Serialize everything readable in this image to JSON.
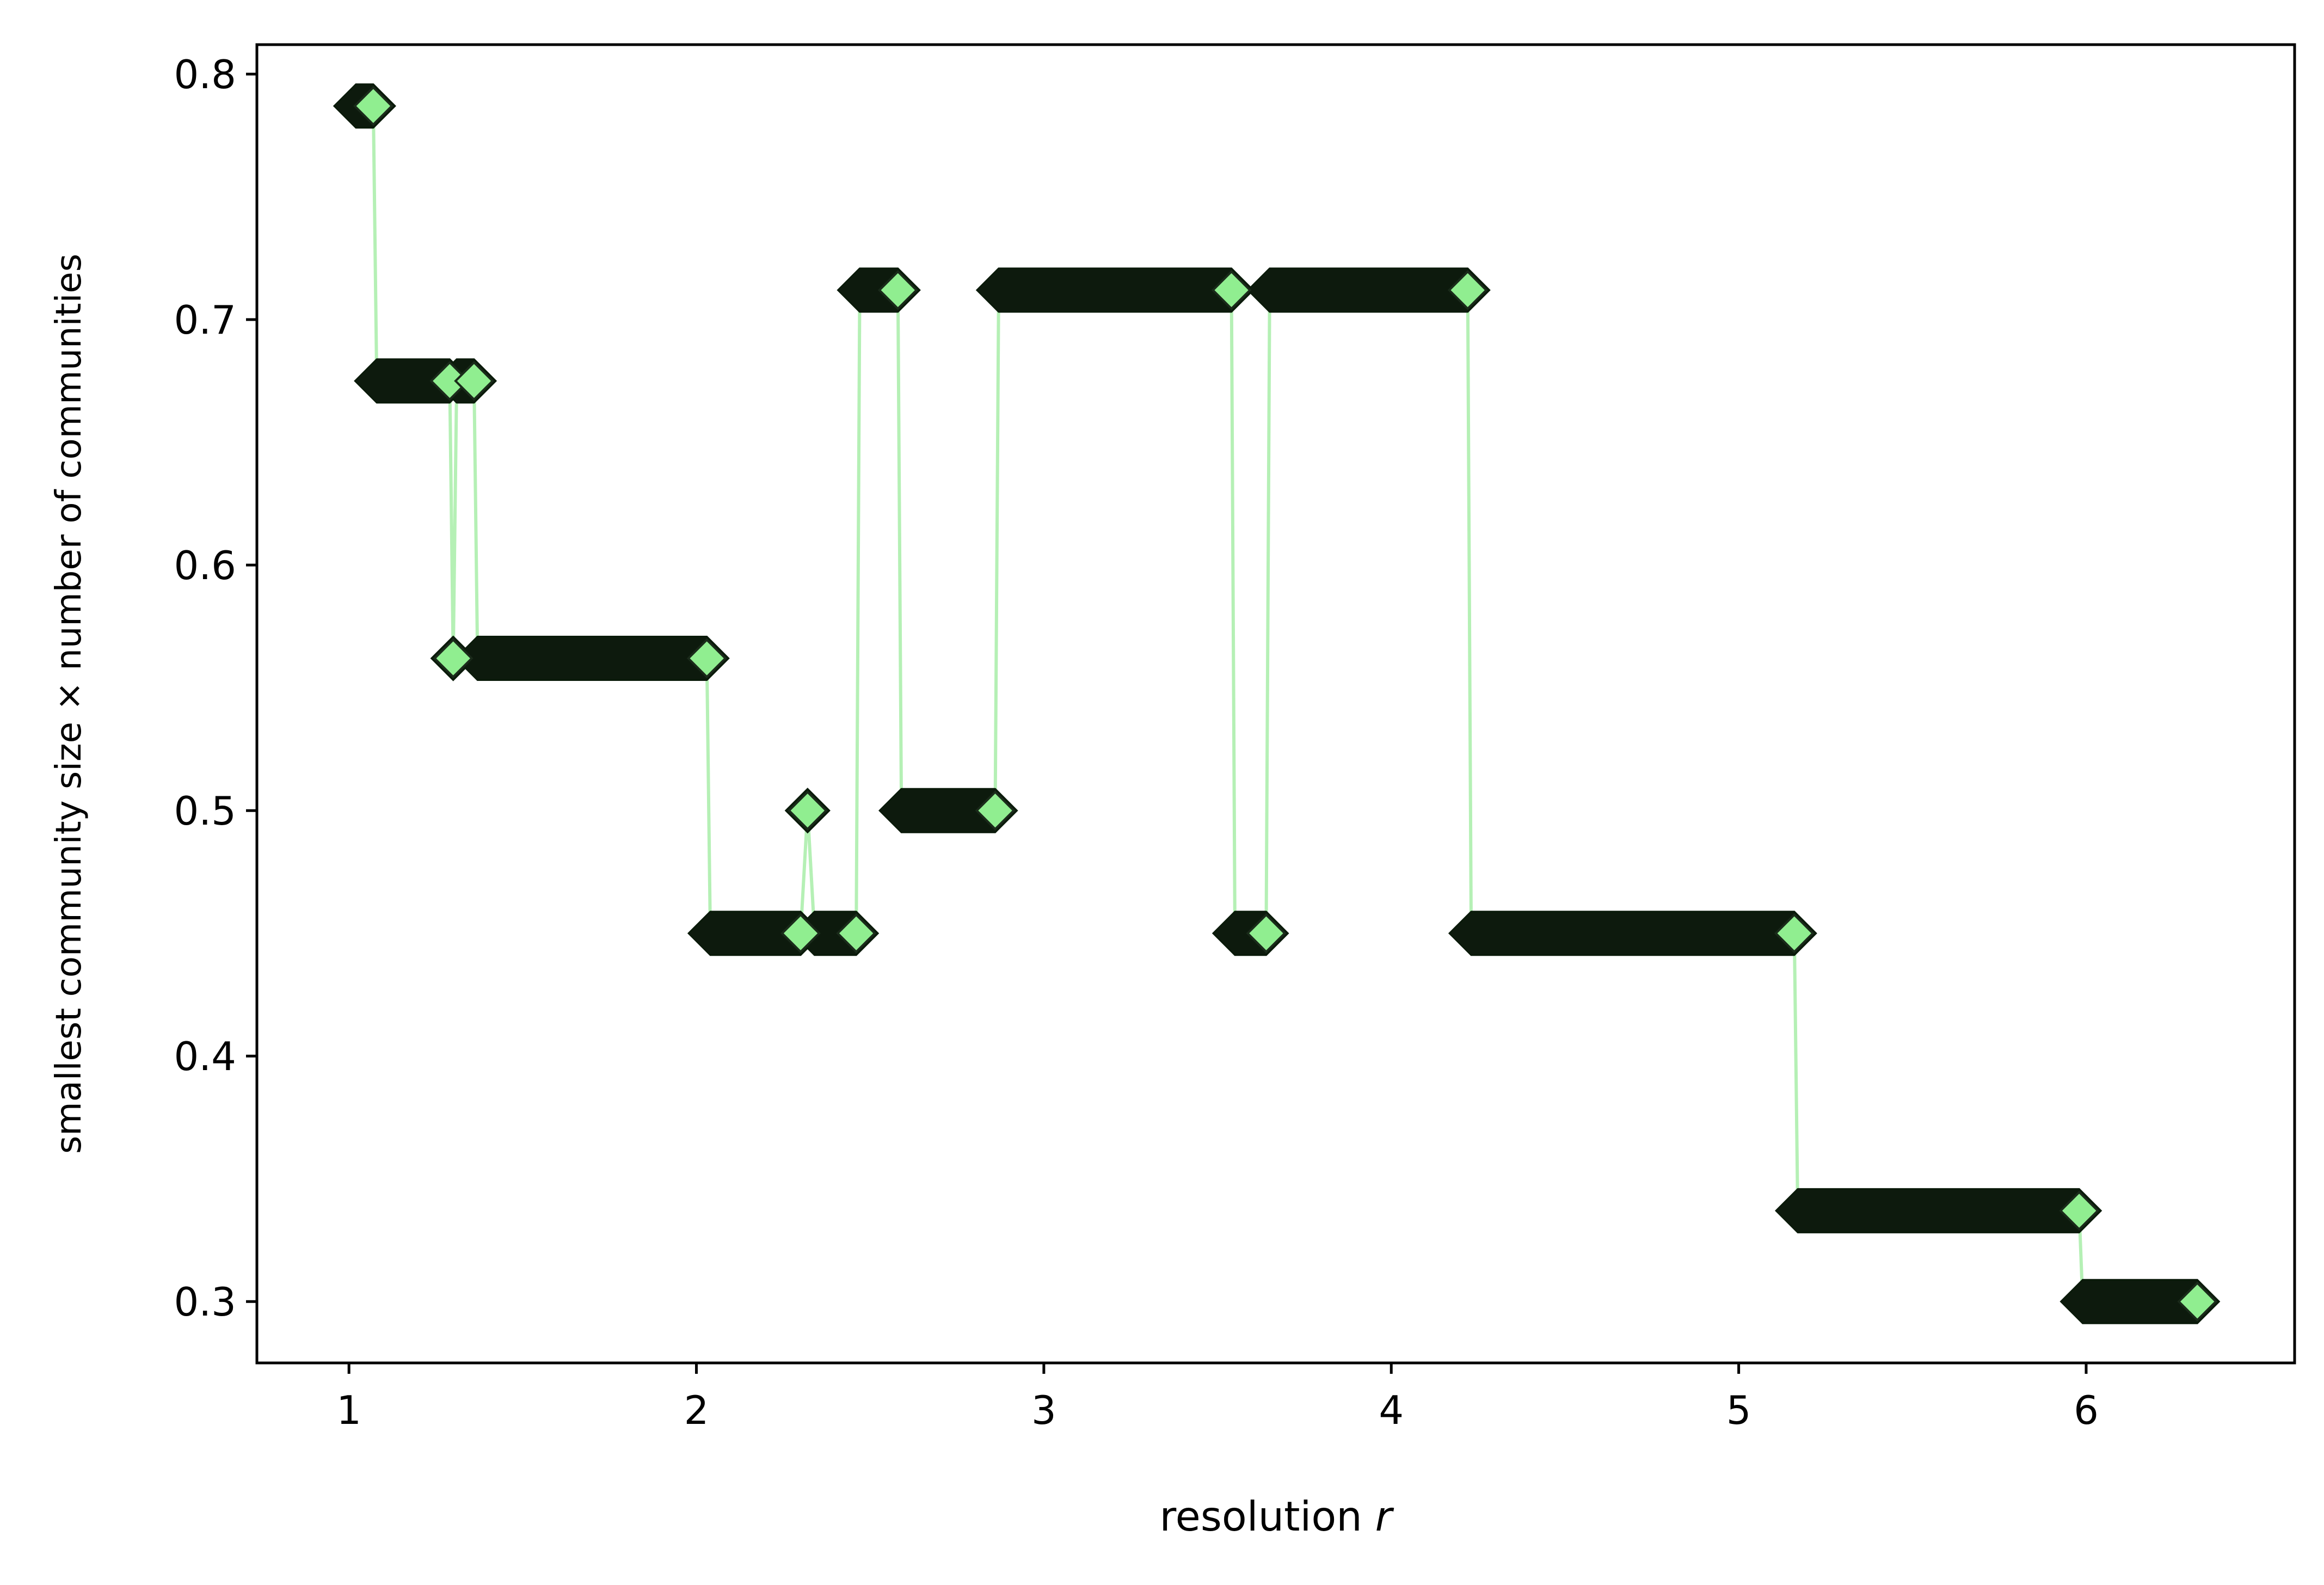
{
  "chart_data": {
    "type": "line",
    "title": "",
    "xlabel": "resolution ",
    "xlabel_var": "r",
    "ylabel": "smallest community size × number of communities",
    "xlim": [
      0.735,
      6.6
    ],
    "ylim": [
      0.275,
      0.812
    ],
    "xticks": [
      1,
      2,
      3,
      4,
      5,
      6
    ],
    "yticks": [
      0.3,
      0.4,
      0.5,
      0.6,
      0.7,
      0.8
    ],
    "xtick_labels": [
      "1",
      "2",
      "3",
      "4",
      "5",
      "6"
    ],
    "ytick_labels": [
      "0.3",
      "0.4",
      "0.5",
      "0.6",
      "0.7",
      "0.8"
    ],
    "grid": false,
    "legend": "none",
    "marker": "diamond",
    "colors": {
      "line": "#b5f0b5",
      "marker_fill": "#90ee90",
      "marker_edge": "#0a1a0a",
      "marker_dense": "#0d1a0d"
    },
    "x": [
      1.02,
      1.07,
      1.08,
      1.29,
      1.3,
      1.31,
      1.36,
      1.37,
      2.03,
      2.04,
      2.3,
      2.32,
      2.34,
      2.46,
      2.47,
      2.48,
      2.58,
      2.59,
      2.86,
      2.87,
      3.54,
      3.55,
      3.64,
      3.65,
      4.22,
      4.23,
      5.16,
      5.17,
      5.98,
      5.99,
      6.32
    ],
    "y": [
      0.787,
      0.787,
      0.675,
      0.675,
      0.562,
      0.675,
      0.675,
      0.562,
      0.562,
      0.45,
      0.45,
      0.5,
      0.45,
      0.45,
      0.712,
      0.712,
      0.712,
      0.5,
      0.5,
      0.712,
      0.712,
      0.45,
      0.45,
      0.712,
      0.712,
      0.45,
      0.45,
      0.337,
      0.337,
      0.3,
      0.3
    ],
    "segments": [
      {
        "x0": 1.02,
        "x1": 1.07,
        "y": 0.787
      },
      {
        "x0": 1.08,
        "x1": 1.29,
        "y": 0.675
      },
      {
        "x0": 1.3,
        "x1": 1.3,
        "y": 0.562
      },
      {
        "x0": 1.31,
        "x1": 1.36,
        "y": 0.675
      },
      {
        "x0": 1.37,
        "x1": 2.03,
        "y": 0.562
      },
      {
        "x0": 2.04,
        "x1": 2.3,
        "y": 0.45
      },
      {
        "x0": 2.32,
        "x1": 2.32,
        "y": 0.5
      },
      {
        "x0": 2.34,
        "x1": 2.46,
        "y": 0.45
      },
      {
        "x0": 2.47,
        "x1": 2.58,
        "y": 0.712
      },
      {
        "x0": 2.59,
        "x1": 2.86,
        "y": 0.5
      },
      {
        "x0": 2.87,
        "x1": 3.54,
        "y": 0.712
      },
      {
        "x0": 3.55,
        "x1": 3.64,
        "y": 0.45
      },
      {
        "x0": 3.65,
        "x1": 4.22,
        "y": 0.712
      },
      {
        "x0": 4.23,
        "x1": 5.16,
        "y": 0.45
      },
      {
        "x0": 5.17,
        "x1": 5.98,
        "y": 0.337
      },
      {
        "x0": 5.99,
        "x1": 6.32,
        "y": 0.3
      }
    ]
  }
}
